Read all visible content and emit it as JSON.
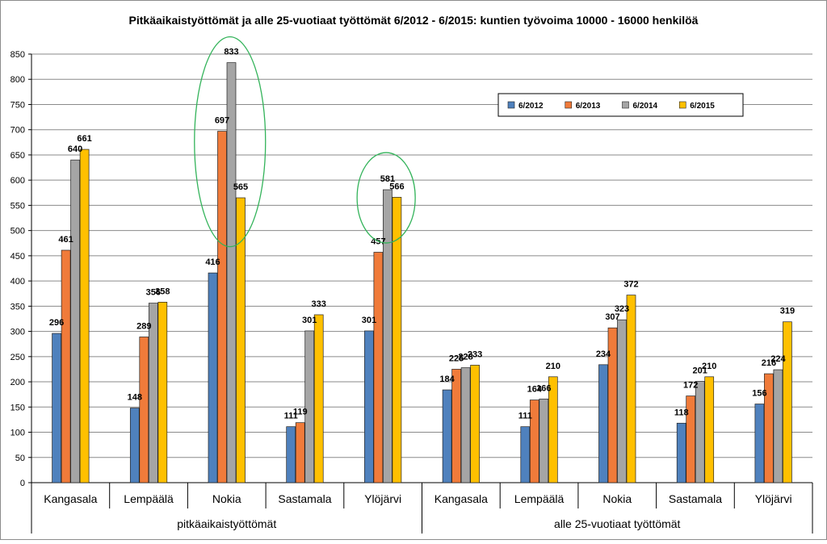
{
  "chart_data": {
    "type": "bar",
    "title": "Pitkäaikaistyöttömät ja alle 25-vuotiaat työttömät 6/2012 - 6/2015: kuntien työvoima 10000 - 16000 henkilöä",
    "xlabel": "",
    "ylabel": "",
    "ylim": [
      0,
      850
    ],
    "yticks": [
      0,
      50,
      100,
      150,
      200,
      250,
      300,
      350,
      400,
      450,
      500,
      550,
      600,
      650,
      700,
      750,
      800,
      850
    ],
    "grid": true,
    "legend_position": "top-right",
    "groups": [
      {
        "label": "pitkäaikaistyöttömät",
        "categories": [
          "Kangasala",
          "Lempäälä",
          "Nokia",
          "Sastamala",
          "Ylöjärvi"
        ]
      },
      {
        "label": "alle 25-vuotiaat työttömät",
        "categories": [
          "Kangasala",
          "Lempäälä",
          "Nokia",
          "Sastamala",
          "Ylöjärvi"
        ]
      }
    ],
    "categories": [
      "Kangasala",
      "Lempäälä",
      "Nokia",
      "Sastamala",
      "Ylöjärvi",
      "Kangasala",
      "Lempäälä",
      "Nokia",
      "Sastamala",
      "Ylöjärvi"
    ],
    "series": [
      {
        "name": "6/2012",
        "color": "#4F81BD",
        "values": [
          296,
          148,
          416,
          111,
          301,
          184,
          111,
          234,
          118,
          156
        ]
      },
      {
        "name": "6/2013",
        "color": "#F07B3A",
        "values": [
          461,
          289,
          697,
          119,
          457,
          225,
          164,
          307,
          172,
          216
        ]
      },
      {
        "name": "6/2014",
        "color": "#A5A5A5",
        "values": [
          640,
          356,
          833,
          301,
          581,
          228,
          166,
          323,
          201,
          224
        ]
      },
      {
        "name": "6/2015",
        "color": "#FFC000",
        "values": [
          661,
          358,
          565,
          333,
          566,
          233,
          210,
          372,
          210,
          319
        ]
      }
    ],
    "annotations": [
      {
        "shape": "ellipse",
        "color": "#33B35A",
        "around_category_index": 2
      },
      {
        "shape": "ellipse",
        "color": "#33B35A",
        "around_category_index": 4
      }
    ]
  }
}
